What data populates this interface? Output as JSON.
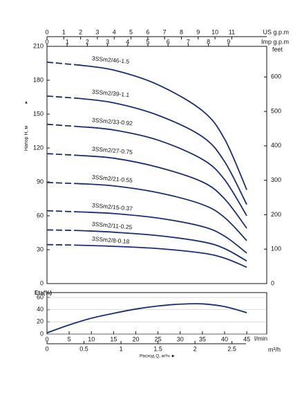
{
  "chart_data": [
    {
      "type": "line",
      "y_label": "Напор H, м",
      "y_label_marker": "▲",
      "ylim": [
        0,
        210
      ],
      "yticks": [
        0,
        30,
        60,
        90,
        120,
        150,
        180,
        210
      ],
      "y2_label": "feet",
      "y2lim": [
        0,
        689
      ],
      "y2ticks": [
        0,
        100,
        200,
        300,
        400,
        500,
        600
      ],
      "xlim": [
        0,
        49.5
      ],
      "x_axes": [
        {
          "label": "US g.p.m",
          "xlim": [
            0,
            13.08
          ],
          "xticks": [
            0,
            1,
            2,
            3,
            4,
            5,
            6,
            7,
            8,
            9,
            10,
            11
          ]
        },
        {
          "label": "Imp g.p.m",
          "xlim": [
            0,
            10.89
          ],
          "xticks": [
            0,
            1,
            2,
            3,
            4,
            5,
            6,
            7,
            8,
            9
          ]
        }
      ],
      "dashed_below_x": 7,
      "color": "#1b2d6b",
      "x": [
        0,
        7,
        15,
        25,
        35,
        40,
        45
      ],
      "series": [
        {
          "name": "3SSm2/46-1.5",
          "values": [
            196,
            193.5,
            189,
            176,
            153,
            128,
            83
          ]
        },
        {
          "name": "3SSm2/39-1.1",
          "values": [
            166,
            164,
            160,
            149,
            130,
            108,
            70
          ]
        },
        {
          "name": "3SSm2/33-0.92",
          "values": [
            141,
            139,
            136,
            127,
            110,
            92,
            60
          ]
        },
        {
          "name": "3SSm2/27-0.75",
          "values": [
            115,
            113.5,
            111,
            103,
            90,
            75,
            49
          ]
        },
        {
          "name": "3SSm2/21-0.55",
          "values": [
            89.5,
            88.5,
            86.5,
            80.5,
            70,
            58.5,
            38
          ]
        },
        {
          "name": "3SSm2/15-0.37",
          "values": [
            64.5,
            63.5,
            62,
            58,
            50.5,
            42,
            27
          ]
        },
        {
          "name": "3SSm2/11-0.25",
          "values": [
            47.5,
            47,
            45.5,
            42.5,
            37,
            31,
            20
          ]
        },
        {
          "name": "3SSm2/8-0.18",
          "values": [
            34.5,
            34,
            33,
            31,
            27,
            22.5,
            14.5
          ]
        }
      ]
    },
    {
      "type": "line",
      "y_label": "Eta(%)",
      "ylim": [
        0,
        68
      ],
      "yticks": [
        0,
        20,
        40,
        60
      ],
      "grid": true,
      "x_label": "l/min",
      "xlim": [
        0,
        49.5
      ],
      "xticks": [
        0,
        5,
        10,
        15,
        20,
        25,
        30,
        35,
        40,
        45
      ],
      "x_axes": [
        {
          "label": "m³/h",
          "caption": "Расход Q, м³/ч ►",
          "xlim": [
            0,
            2.97
          ],
          "xticks": [
            0,
            0.5,
            1,
            1.5,
            2,
            2.5
          ]
        }
      ],
      "color": "#1b2d6b",
      "x": [
        0,
        5,
        10,
        15,
        20,
        25,
        30,
        35,
        40,
        45
      ],
      "series": [
        {
          "name": "Eta",
          "values": [
            2,
            15,
            26,
            34,
            41,
            46,
            49,
            49.5,
            45,
            35
          ]
        }
      ]
    }
  ]
}
